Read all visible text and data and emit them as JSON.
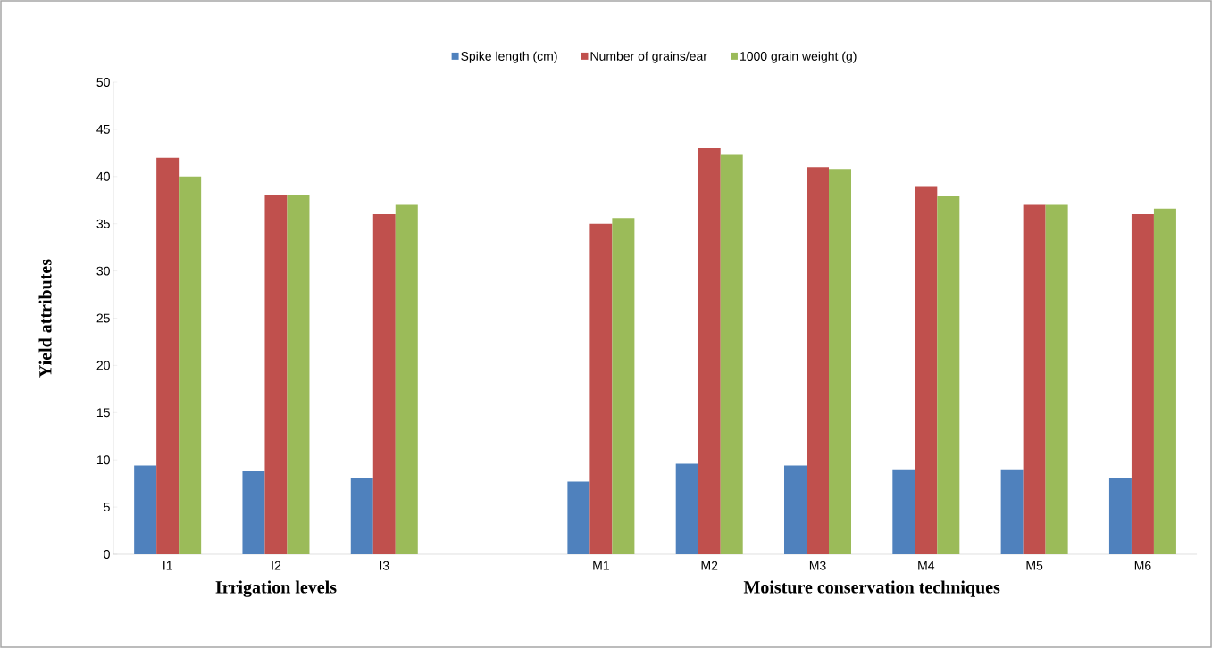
{
  "chart_data": {
    "type": "bar",
    "categories": [
      "I1",
      "I2",
      "I3",
      null,
      "M1",
      "M2",
      "M3",
      "M4",
      "M5",
      "M6"
    ],
    "series": [
      {
        "name": "Spike length (cm)",
        "color": "#4f81bd",
        "values": [
          9.4,
          8.8,
          8.1,
          null,
          7.7,
          9.6,
          9.4,
          8.9,
          8.9,
          8.1
        ]
      },
      {
        "name": "Number of grains/ear",
        "color": "#c0504d",
        "values": [
          42,
          38,
          36,
          null,
          35,
          43,
          41,
          39,
          37,
          36
        ]
      },
      {
        "name": "1000 grain weight (g)",
        "color": "#9bbb59",
        "values": [
          40,
          38,
          37,
          null,
          35.6,
          42.3,
          40.8,
          37.9,
          37,
          36.6
        ]
      }
    ],
    "xlabel": "Irrigation levels",
    "annotations": [
      "Moisture conservation techniques"
    ],
    "ylabel": "Yield attributes",
    "ylim": [
      0,
      50
    ],
    "yticks": [
      0,
      5,
      10,
      15,
      20,
      25,
      30,
      35,
      40,
      45,
      50
    ],
    "grid": false,
    "legend": "top"
  }
}
